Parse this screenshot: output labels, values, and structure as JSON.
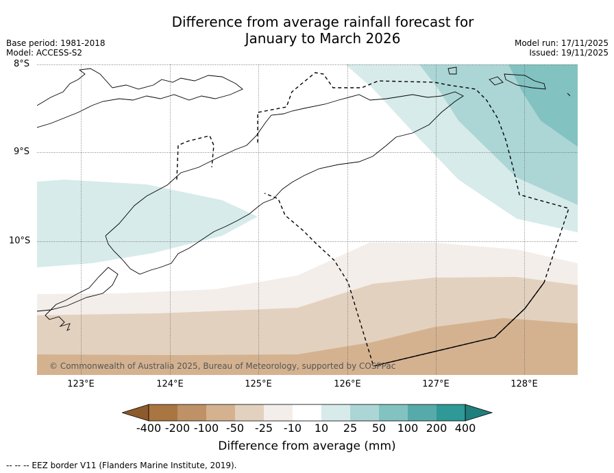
{
  "title": {
    "line1": "Difference from average rainfall forecast for",
    "line2": "January to March 2026"
  },
  "meta": {
    "base_period": "Base period: 1981-2018",
    "model": "Model: ACCESS-S2",
    "model_run": "Model run: 17/11/2025",
    "issued": "Issued: 19/11/2025"
  },
  "axes": {
    "lat_labels": [
      "8°S",
      "9°S",
      "10°S"
    ],
    "lon_labels": [
      "123°E",
      "124°E",
      "125°E",
      "126°E",
      "127°E",
      "128°E"
    ]
  },
  "credit": "© Commonwealth of Australia 2025, Bureau of Meteorology, supported by COSPPac",
  "colorbar": {
    "title": "Difference from average (mm)",
    "labels": [
      "-400",
      "-200",
      "-100",
      "-50",
      "-25",
      "-10",
      "10",
      "25",
      "50",
      "100",
      "200",
      "400"
    ],
    "colors": [
      "#8c5a2b",
      "#a97641",
      "#bf9166",
      "#d4b290",
      "#e3d1bf",
      "#f3eee9",
      "#ffffff",
      "#d6ebea",
      "#acd6d5",
      "#82c2c0",
      "#56abaa",
      "#2e9997",
      "#207f7d"
    ]
  },
  "legend": "--  --  -- EEZ border V11 (Flanders Marine Institute, 2019)."
}
